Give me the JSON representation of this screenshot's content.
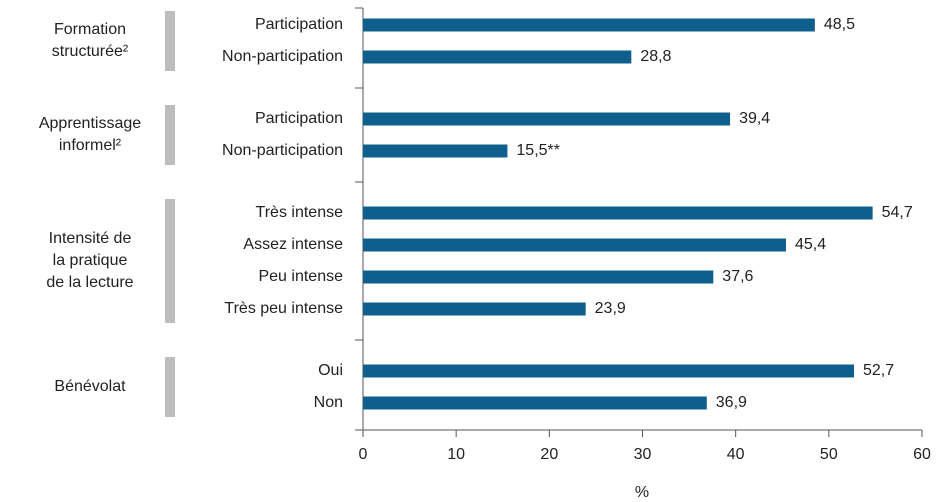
{
  "chart_data": {
    "type": "bar",
    "orientation": "horizontal",
    "color": "#0e5f8e",
    "xlabel": "%",
    "xlim": [
      0,
      60
    ],
    "xticks": [
      0,
      10,
      20,
      30,
      40,
      50,
      60
    ],
    "groups": [
      {
        "label": [
          "Formation",
          "structurée²"
        ],
        "categories": [
          "Participation",
          "Non-participation"
        ],
        "values": [
          48.5,
          28.8
        ],
        "value_labels": [
          "48,5",
          "28,8"
        ]
      },
      {
        "label": [
          "Apprentissage",
          "informel²"
        ],
        "categories": [
          "Participation",
          "Non-participation"
        ],
        "values": [
          39.4,
          15.5
        ],
        "value_labels": [
          "39,4",
          "15,5**"
        ]
      },
      {
        "label": [
          "Intensité de",
          "la pratique",
          "de la lecture"
        ],
        "categories": [
          "Très intense",
          "Assez intense",
          "Peu intense",
          "Très peu intense"
        ],
        "values": [
          54.7,
          45.4,
          37.6,
          23.9
        ],
        "value_labels": [
          "54,7",
          "45,4",
          "37,6",
          "23,9"
        ]
      },
      {
        "label": [
          "Bénévolat"
        ],
        "categories": [
          "Oui",
          "Non"
        ],
        "values": [
          52.7,
          36.9
        ],
        "value_labels": [
          "52,7",
          "36,9"
        ]
      }
    ]
  }
}
